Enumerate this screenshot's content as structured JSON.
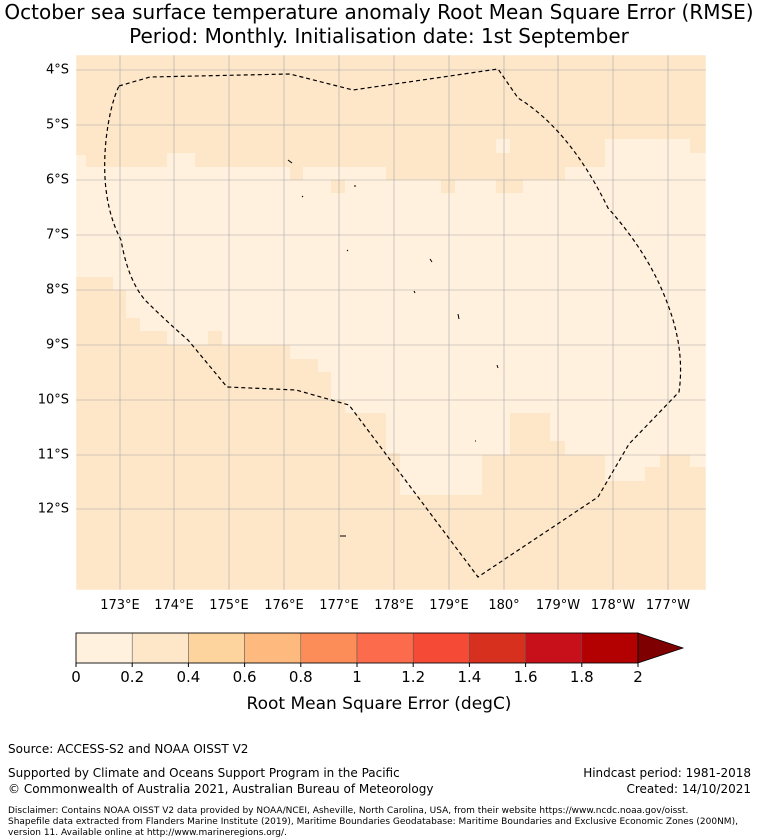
{
  "title_line1": "October sea surface temperature anomaly Root Mean Square Error (RMSE)",
  "title_line2": "Period: Monthly. Initialisation date: 1st September",
  "map": {
    "lat_labels": [
      "4°S",
      "5°S",
      "6°S",
      "7°S",
      "8°S",
      "9°S",
      "10°S",
      "11°S",
      "12°S"
    ],
    "lon_labels": [
      "173°E",
      "174°E",
      "175°E",
      "176°E",
      "177°E",
      "178°E",
      "179°E",
      "180°",
      "179°W",
      "178°W",
      "177°W"
    ],
    "eez_boundary": "dashed",
    "gridlines": true,
    "region_values": {
      "north_band": "0.2-0.4",
      "central_zone": "0-0.2",
      "southwest_and_south": "0.2-0.4"
    }
  },
  "colorbar": {
    "label": "Root Mean Square Error (degC)",
    "ticks": [
      "0",
      "0.2",
      "0.4",
      "0.6",
      "0.8",
      "1",
      "1.2",
      "1.4",
      "1.6",
      "1.8",
      "2"
    ],
    "colors": [
      "#fff1de",
      "#fee6c8",
      "#fdd49e",
      "#fdb97e",
      "#fc8d59",
      "#fc6c4c",
      "#f44a36",
      "#d7301f",
      "#c8101a",
      "#b30000"
    ],
    "extend_color": "#7f0000"
  },
  "footer": {
    "source": "Source: ACCESS-S2 and NOAA OISST V2",
    "supported": "Supported by Climate and Oceans Support Program in the Pacific",
    "copyright": "© Commonwealth of Australia 2021, Australian Bureau of Meteorology",
    "hindcast": "Hindcast period: 1981-2018",
    "created": "Created: 14/10/2021",
    "disclaimer1": "Disclaimer: Contains NOAA OISST V2 data provided by NOAA/NCEI, Asheville, North Carolina, USA, from their website https://www.ncdc.noaa.gov/oisst.",
    "disclaimer2": "Shapefile data extracted from Flanders Marine Institute (2019), Maritime Boundaries Geodatabase: Maritime Boundaries and Exclusive Economic Zones (200NM),",
    "disclaimer3": "version 11. Available online at http://www.marineregions.org/."
  }
}
